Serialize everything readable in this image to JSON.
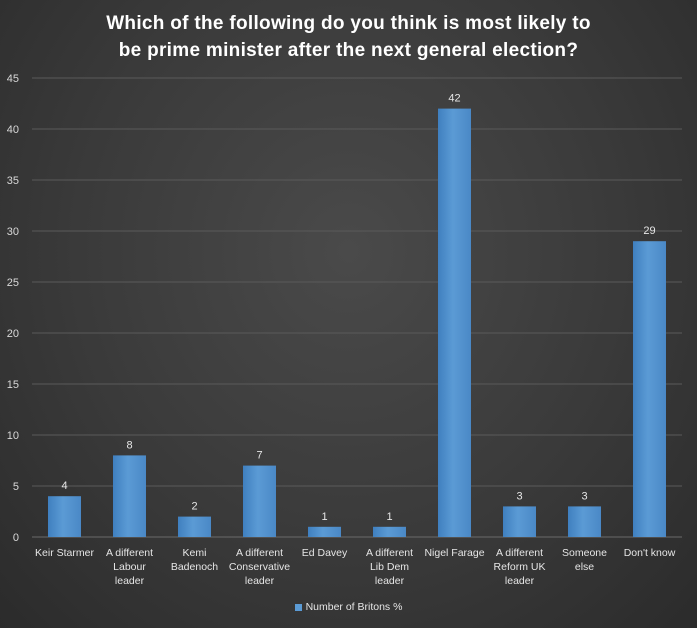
{
  "chart_data": {
    "type": "bar",
    "title_lines": [
      "Which of the following do you think is most likely to",
      "be prime minister after the next general election?"
    ],
    "categories": [
      [
        "Keir Starmer"
      ],
      [
        "A different",
        "Labour",
        "leader"
      ],
      [
        "Kemi",
        "Badenoch"
      ],
      [
        "A different",
        "Conservative",
        "leader"
      ],
      [
        "Ed Davey"
      ],
      [
        "A different",
        "Lib Dem",
        "leader"
      ],
      [
        "Nigel Farage"
      ],
      [
        "A different",
        "Reform UK",
        "leader"
      ],
      [
        "Someone",
        "else"
      ],
      [
        "Don't know"
      ]
    ],
    "series": [
      {
        "name": "Number of Britons %",
        "values": [
          4,
          8,
          2,
          7,
          1,
          1,
          42,
          3,
          3,
          29
        ]
      }
    ],
    "ylim": [
      0,
      45
    ],
    "yticks": [
      0,
      5,
      10,
      15,
      20,
      25,
      30,
      35,
      40,
      45
    ],
    "grid": true,
    "legend": "bottom",
    "colors": {
      "bar": "#5b9bd5",
      "bar_dark": "#3f7fbf",
      "grid": "#5a5a5a"
    }
  }
}
